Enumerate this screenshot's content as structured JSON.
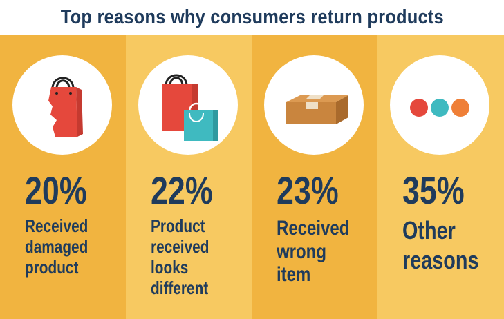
{
  "header": {
    "title": "Top reasons why consumers return products"
  },
  "colors": {
    "title": "#1f3b5c",
    "col_dark": "#f1b440",
    "col_light": "#f7c961",
    "bag_red": "#e5483c",
    "bag_teal": "#3fbac0",
    "box": "#c9853e",
    "dot_red": "#e5483c",
    "dot_teal": "#3fbac0",
    "dot_orange": "#ef7f37"
  },
  "reasons": [
    {
      "icon": "damaged-bag-icon",
      "percent": "20%",
      "lines": [
        "Received",
        "damaged",
        "product"
      ]
    },
    {
      "icon": "shopping-bags-icon",
      "percent": "22%",
      "lines": [
        "Product",
        "received",
        "looks",
        "different"
      ]
    },
    {
      "icon": "package-box-icon",
      "percent": "23%",
      "lines": [
        "Received",
        "wrong",
        "item"
      ]
    },
    {
      "icon": "three-dots-icon",
      "percent": "35%",
      "lines": [
        "Other",
        "reasons"
      ]
    }
  ]
}
